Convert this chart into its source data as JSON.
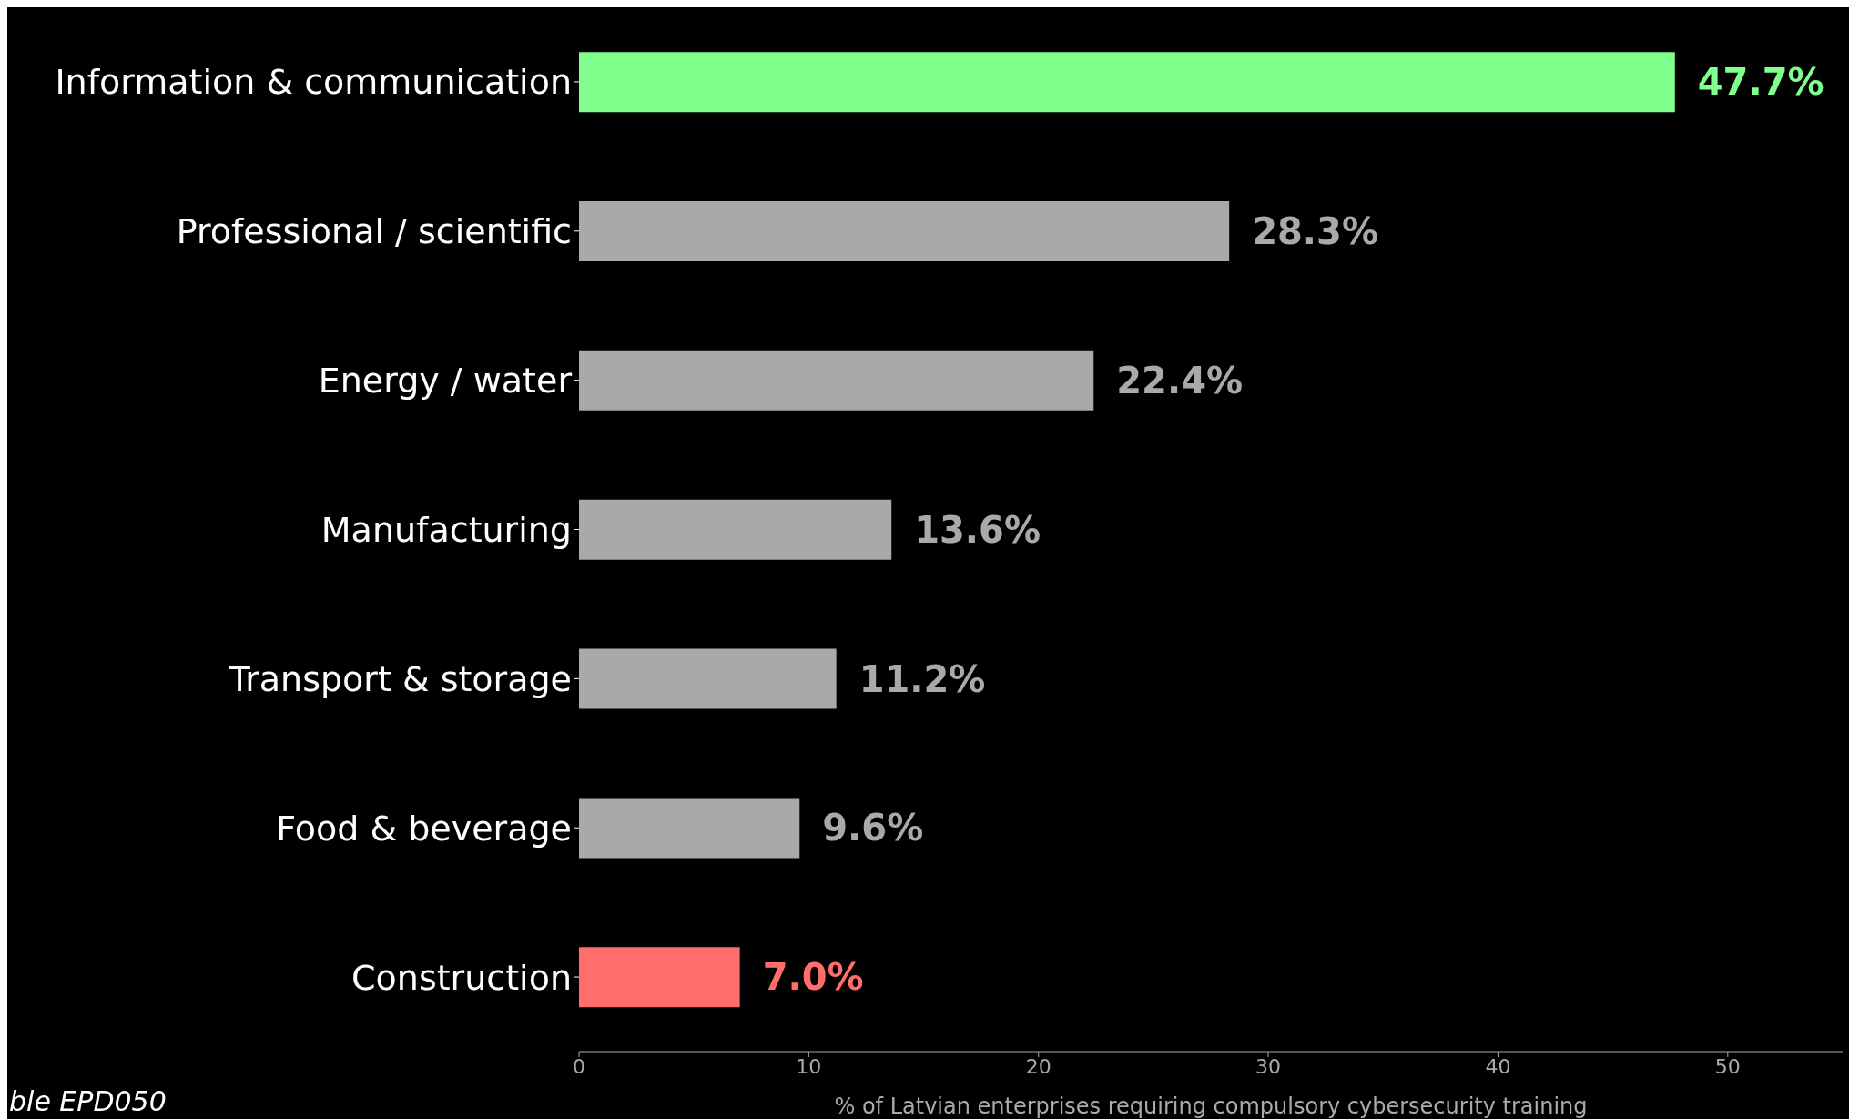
{
  "chart_data": {
    "type": "bar",
    "orientation": "horizontal",
    "categories": [
      "Information & communication",
      "Professional / scientific",
      "Energy / water",
      "Manufacturing",
      "Transport & storage",
      "Food & beverage",
      "Construction"
    ],
    "values": [
      47.7,
      28.3,
      22.4,
      13.6,
      11.2,
      9.6,
      7.0
    ],
    "colors": [
      "#80ff8c",
      "#a9a9a9",
      "#a9a9a9",
      "#a9a9a9",
      "#a9a9a9",
      "#a9a9a9",
      "#ff6e6b"
    ],
    "value_labels": [
      "47.7%",
      "28.3%",
      "22.4%",
      "13.6%",
      "11.2%",
      "9.6%",
      "7.0%"
    ],
    "xlim": [
      0,
      55
    ],
    "xticks": [
      0,
      10,
      20,
      30,
      40,
      50
    ],
    "xlabel": "% of Latvian enterprises requiring compulsory cybersecurity training",
    "annotations": [
      "ble EPD050"
    ],
    "grid": false,
    "legend": false
  }
}
